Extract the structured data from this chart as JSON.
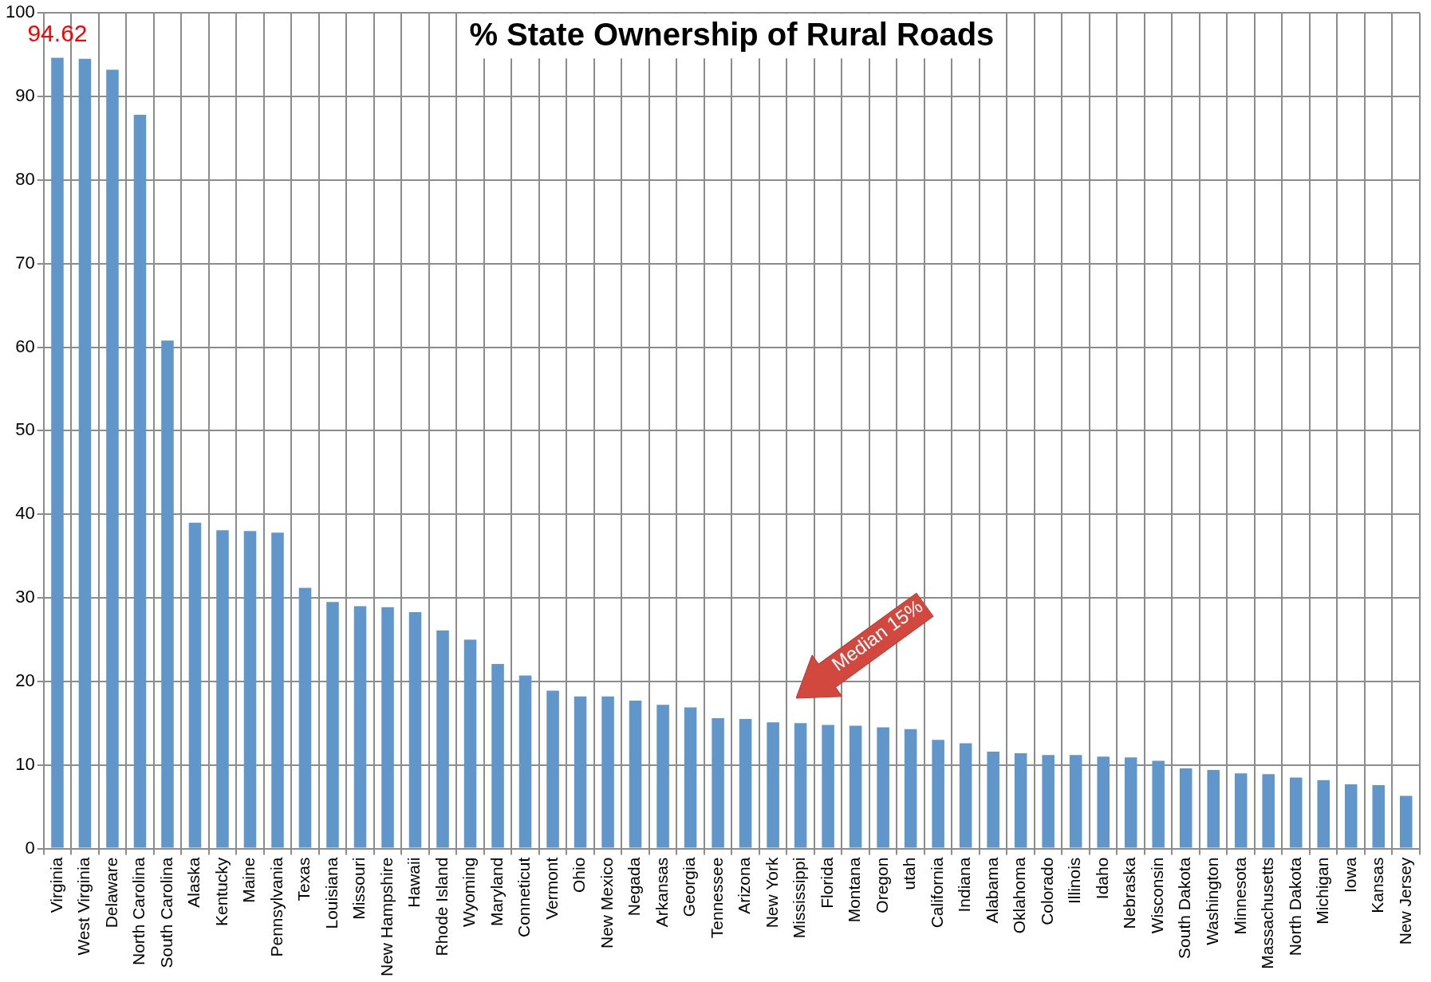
{
  "chart_data": {
    "type": "bar",
    "title": "% State Ownership of Rural Roads",
    "categories": [
      "Virginia",
      "West Virginia",
      "Delaware",
      "North Carolina",
      "South Carolina",
      "Alaska",
      "Kentucky",
      "Maine",
      "Pennsylvania",
      "Texas",
      "Louisiana",
      "Missouri",
      "New Hampshire",
      "Hawaii",
      "Rhode Island",
      "Wyoming",
      "Maryland",
      "Conneticut",
      "Vermont",
      "Ohio",
      "New Mexico",
      "Negada",
      "Arkansas",
      "Georgia",
      "Tennessee",
      "Arizona",
      "New York",
      "Mississippi",
      "Florida",
      "Montana",
      "Oregon",
      "utah",
      "California",
      "Indiana",
      "Alabama",
      "Oklahoma",
      "Colorado",
      "Illinois",
      "Idaho",
      "Nebraska",
      "Wisconsin",
      "South Dakota",
      "Washington",
      "Minnesota",
      "Massachusetts",
      "North Dakota",
      "Michigan",
      "Iowa",
      "Kansas",
      "New Jersey"
    ],
    "values": [
      94.62,
      94.5,
      93.2,
      87.8,
      60.8,
      39.0,
      38.1,
      38.0,
      37.8,
      31.2,
      29.5,
      29.0,
      28.9,
      28.3,
      26.1,
      25.0,
      22.1,
      20.7,
      18.9,
      18.2,
      18.2,
      17.7,
      17.2,
      16.9,
      15.6,
      15.5,
      15.1,
      15.0,
      14.8,
      14.7,
      14.5,
      14.3,
      13.0,
      12.6,
      11.6,
      11.4,
      11.2,
      11.2,
      11.0,
      10.9,
      10.5,
      9.6,
      9.4,
      9.0,
      8.9,
      8.5,
      8.2,
      7.7,
      7.6,
      6.3
    ],
    "value_labels": [
      "94.62",
      null,
      null,
      null,
      null,
      null,
      null,
      null,
      null,
      null,
      null,
      null,
      null,
      null,
      null,
      null,
      null,
      null,
      null,
      null,
      null,
      null,
      null,
      null,
      null,
      null,
      null,
      null,
      null,
      null,
      null,
      null,
      null,
      null,
      null,
      null,
      null,
      null,
      null,
      null,
      null,
      null,
      null,
      null,
      null,
      null,
      null,
      null,
      null,
      null
    ],
    "color": "#6096c9",
    "ylim": [
      0,
      100
    ],
    "yticks": [
      0,
      10,
      20,
      30,
      40,
      50,
      60,
      70,
      80,
      90,
      100
    ],
    "grid": true,
    "legend": false,
    "annotations": [
      "Median 15%"
    ]
  }
}
